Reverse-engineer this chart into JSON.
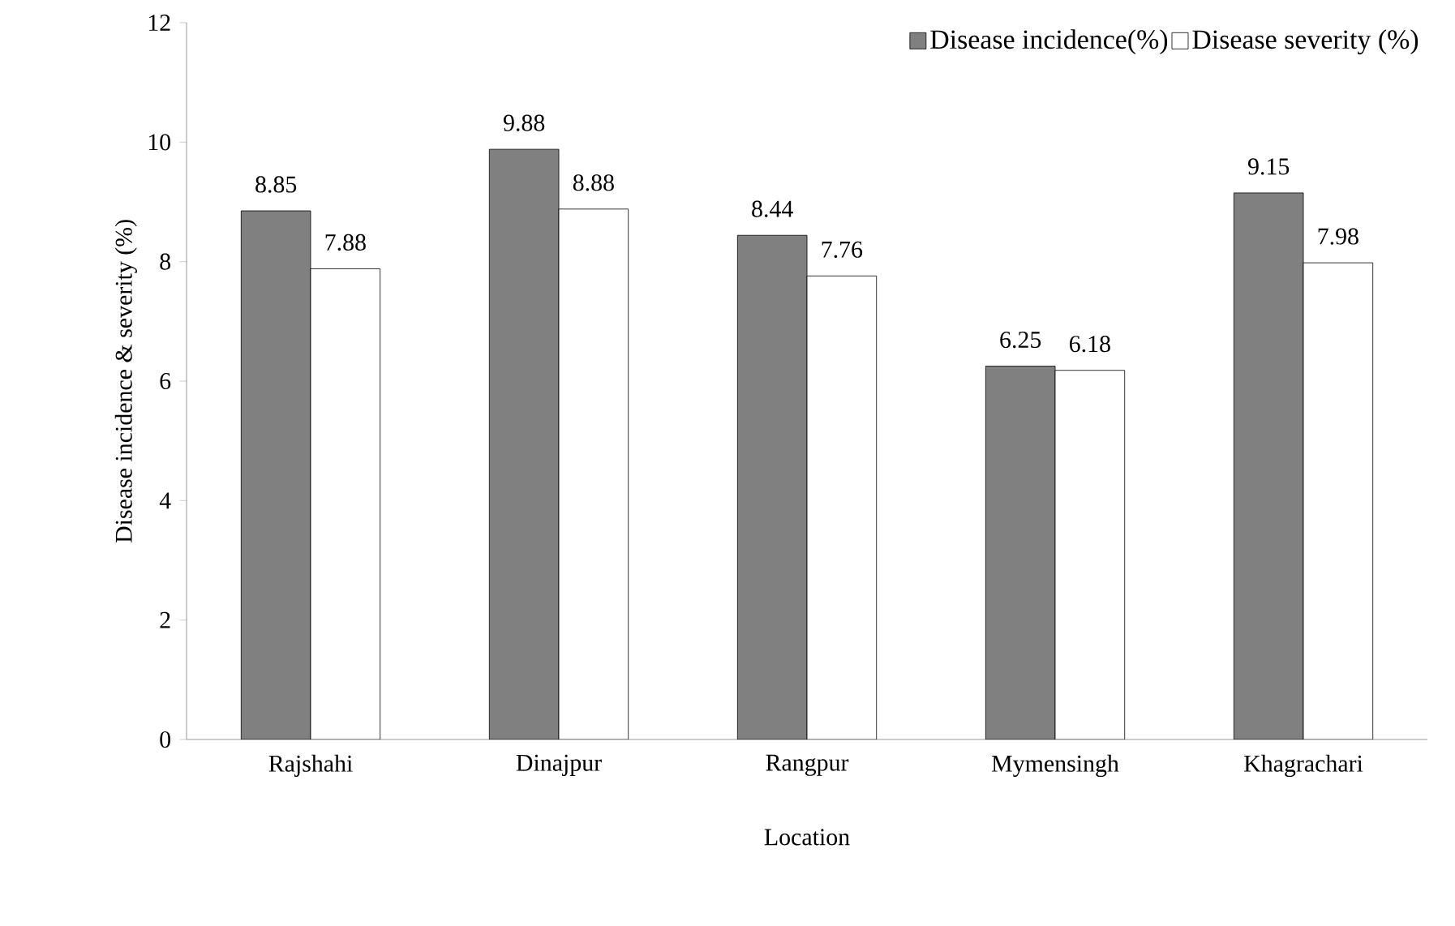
{
  "chart_data": {
    "type": "bar",
    "xlabel": "Location",
    "ylabel": "Disease incidence & severity (%)",
    "categories": [
      "Rajshahi",
      "Dinajpur",
      "Rangpur",
      "Mymensingh",
      "Khagrachari"
    ],
    "series": [
      {
        "name": "Disease incidence(%)",
        "color": "#808080",
        "values": [
          8.85,
          9.88,
          8.44,
          6.25,
          9.15
        ]
      },
      {
        "name": "Disease severity (%)",
        "color": "#ffffff",
        "values": [
          7.88,
          8.88,
          7.76,
          6.18,
          7.98
        ]
      }
    ],
    "ylim": [
      0,
      12
    ],
    "yticks": [
      0,
      2,
      4,
      6,
      8,
      10,
      12
    ],
    "data_labels": true,
    "legend": "top right"
  }
}
